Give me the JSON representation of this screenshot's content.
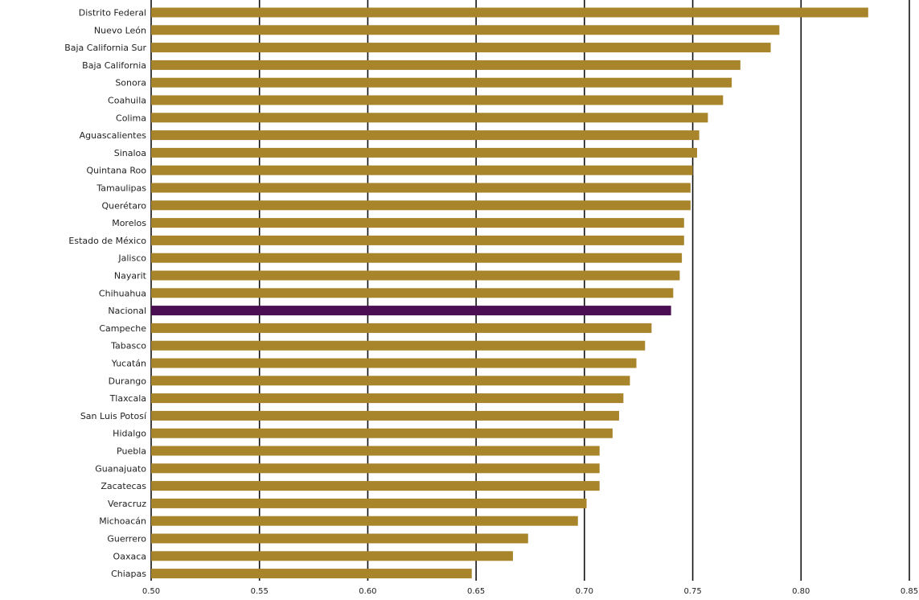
{
  "chart_data": {
    "type": "bar",
    "orientation": "horizontal",
    "title": "",
    "xlabel": "",
    "ylabel": "",
    "xlim": [
      0.5,
      0.85
    ],
    "grid": "vertical lines at major ticks",
    "categories": [
      "Distrito Federal",
      "Nuevo León",
      "Baja California Sur",
      "Baja California",
      "Sonora",
      "Coahuila",
      "Colima",
      "Aguascalientes",
      "Sinaloa",
      "Quintana Roo",
      "Tamaulipas",
      "Querétaro",
      "Morelos",
      "Estado de México",
      "Jalisco",
      "Nayarit",
      "Chihuahua",
      "Nacional",
      "Campeche",
      "Tabasco",
      "Yucatán",
      "Durango",
      "Tlaxcala",
      "San Luis Potosí",
      "Hidalgo",
      "Puebla",
      "Guanajuato",
      "Zacatecas",
      "Veracruz",
      "Michoacán",
      "Guerrero",
      "Oaxaca",
      "Chiapas"
    ],
    "values": [
      0.831,
      0.79,
      0.786,
      0.772,
      0.768,
      0.764,
      0.757,
      0.753,
      0.752,
      0.75,
      0.749,
      0.749,
      0.746,
      0.746,
      0.745,
      0.744,
      0.741,
      0.74,
      0.731,
      0.728,
      0.724,
      0.721,
      0.718,
      0.716,
      0.713,
      0.707,
      0.707,
      0.707,
      0.701,
      0.697,
      0.674,
      0.667,
      0.648
    ],
    "x_ticks": [
      "0.50",
      "0.55",
      "0.60",
      "0.65",
      "0.70",
      "0.75",
      "0.80",
      "0.85"
    ],
    "x_tick_values": [
      0.5,
      0.55,
      0.6,
      0.65,
      0.7,
      0.75,
      0.8,
      0.85
    ],
    "highlight_category": "Nacional",
    "colors": {
      "bar": "#a8842a",
      "highlight": "#4b0e52",
      "grid": "#111111",
      "text": "#222222"
    }
  }
}
